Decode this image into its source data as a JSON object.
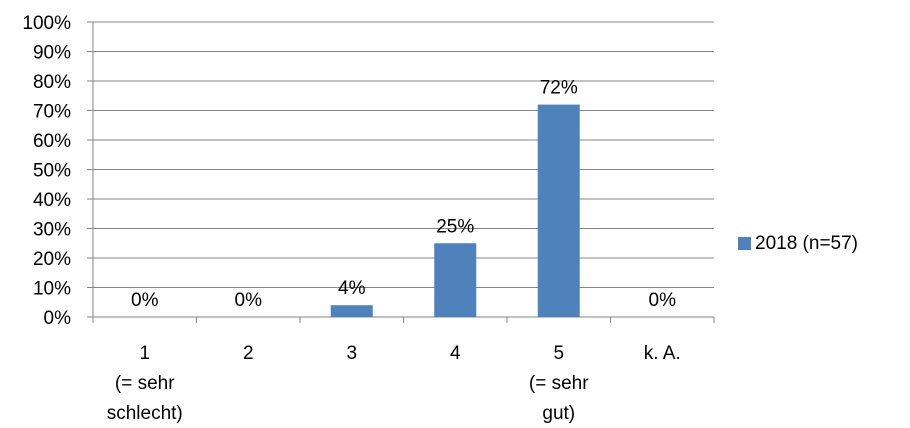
{
  "chart_data": {
    "type": "bar",
    "categories": [
      [
        "1",
        "(= sehr",
        "schlecht)"
      ],
      [
        "2"
      ],
      [
        "3"
      ],
      [
        "4"
      ],
      [
        "5",
        "(= sehr",
        "gut)"
      ],
      [
        "k. A."
      ]
    ],
    "series": [
      {
        "name": "2018 (n=57)",
        "values": [
          0,
          0,
          4,
          25,
          72,
          0
        ],
        "labels": [
          "0%",
          "0%",
          "4%",
          "25%",
          "72%",
          "0%"
        ],
        "color": "#4f81bd"
      }
    ],
    "y_ticks": [
      "0%",
      "10%",
      "20%",
      "30%",
      "40%",
      "50%",
      "60%",
      "70%",
      "80%",
      "90%",
      "100%"
    ],
    "ylim": [
      0,
      100
    ],
    "grid": true,
    "legend_position": "right"
  }
}
